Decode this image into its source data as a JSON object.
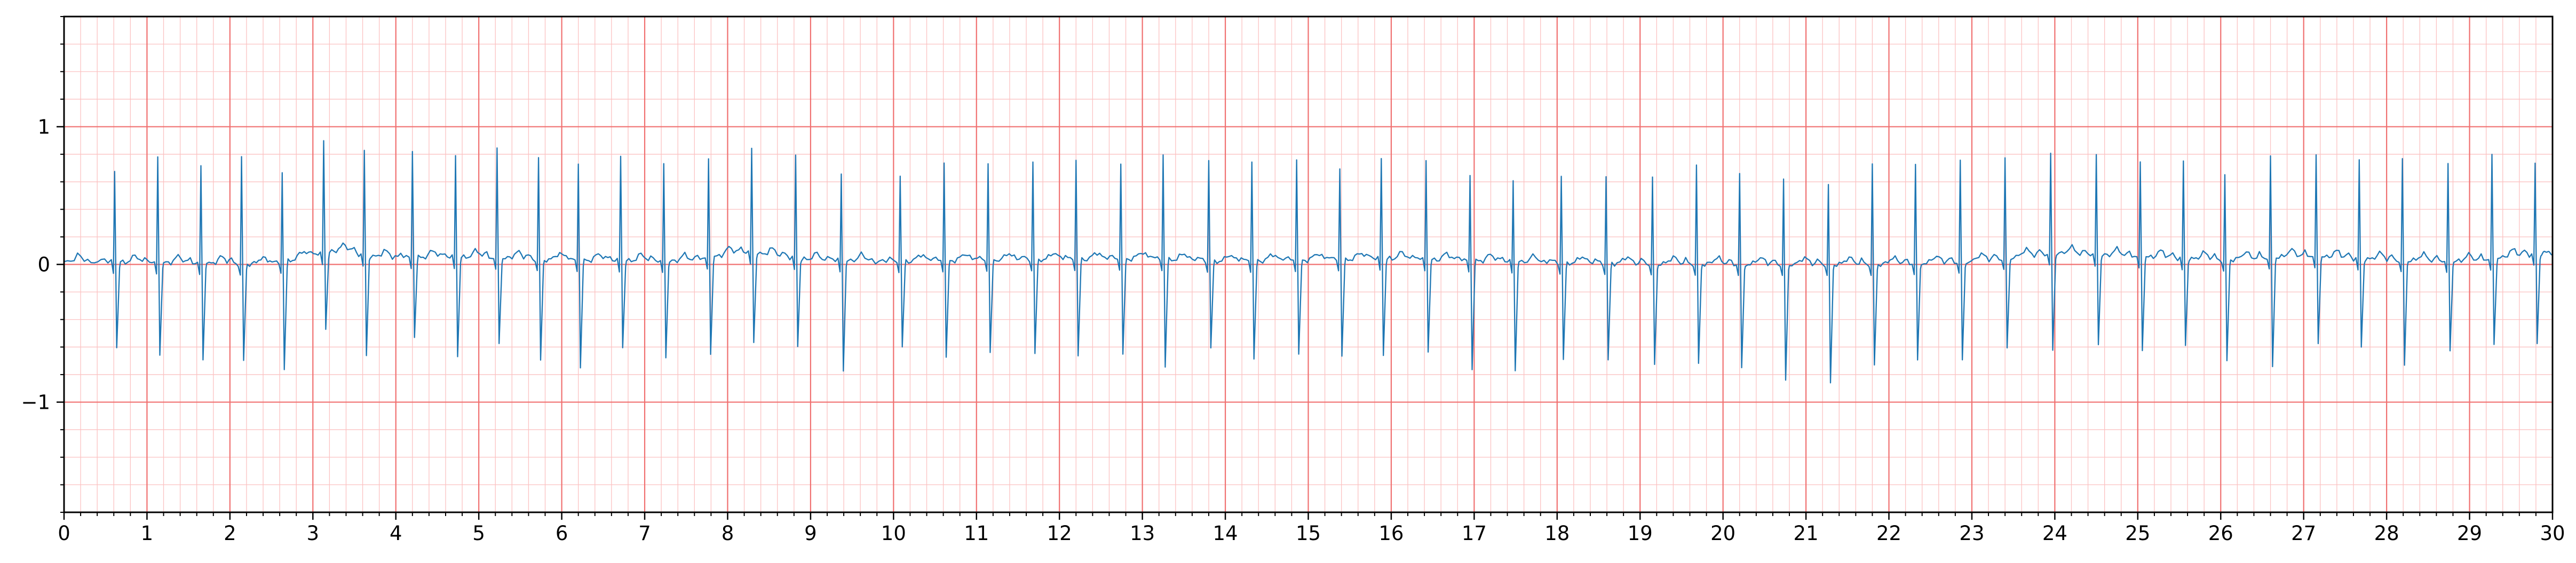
{
  "chart_data": {
    "type": "line",
    "title": "",
    "xlabel": "",
    "ylabel": "",
    "xlim": [
      0,
      30
    ],
    "ylim": [
      -1.8,
      1.8
    ],
    "grid": {
      "major_x_step": 1,
      "major_y_step": 1,
      "minor_step": 0.2,
      "major_color": "#f07070",
      "minor_color": "#fbc2c2"
    },
    "x_tick_labels": [
      "0",
      "1",
      "2",
      "3",
      "4",
      "5",
      "6",
      "7",
      "8",
      "9",
      "10",
      "11",
      "12",
      "13",
      "14",
      "15",
      "16",
      "17",
      "18",
      "19",
      "20",
      "21",
      "22",
      "23",
      "24",
      "25",
      "26",
      "27",
      "28",
      "29",
      "30"
    ],
    "y_ticks": [
      {
        "value": 1,
        "label": "1"
      },
      {
        "value": 0,
        "label": "0"
      },
      {
        "value": -1,
        "label": "−1"
      }
    ],
    "line_color": "#1f77b4",
    "series": [
      {
        "beat_times_s": [
          0.61,
          1.13,
          1.65,
          2.14,
          2.63,
          3.13,
          3.62,
          4.2,
          4.72,
          5.22,
          5.72,
          6.2,
          6.71,
          7.23,
          7.77,
          8.29,
          8.82,
          9.37,
          10.08,
          10.61,
          11.14,
          11.68,
          12.2,
          12.74,
          13.25,
          13.8,
          14.32,
          14.86,
          15.38,
          15.88,
          16.42,
          16.95,
          17.47,
          18.05,
          18.59,
          19.15,
          19.68,
          20.2,
          20.73,
          21.27,
          21.8,
          22.32,
          22.86,
          23.4,
          23.95,
          24.5,
          25.03,
          25.55,
          26.05,
          26.6,
          27.15,
          27.67,
          28.19,
          28.74,
          29.27,
          29.79
        ],
        "r_peak_amplitudes": [
          0.66,
          0.77,
          0.71,
          0.78,
          0.65,
          0.82,
          0.76,
          0.77,
          0.74,
          0.8,
          0.74,
          0.7,
          0.76,
          0.71,
          0.72,
          0.76,
          0.75,
          0.63,
          0.62,
          0.71,
          0.7,
          0.71,
          0.72,
          0.69,
          0.76,
          0.73,
          0.72,
          0.73,
          0.66,
          0.73,
          0.72,
          0.62,
          0.59,
          0.63,
          0.63,
          0.63,
          0.72,
          0.66,
          0.62,
          0.58,
          0.73,
          0.72,
          0.74,
          0.73,
          0.73,
          0.73,
          0.69,
          0.71,
          0.62,
          0.74,
          0.74,
          0.72,
          0.74,
          0.71,
          0.76,
          0.66
        ],
        "s_trough_amplitudes": [
          -0.62,
          -0.67,
          -0.7,
          -0.7,
          -0.78,
          -0.55,
          -0.73,
          -0.58,
          -0.72,
          -0.62,
          -0.73,
          -0.78,
          -0.63,
          -0.7,
          -0.7,
          -0.65,
          -0.64,
          -0.8,
          -0.62,
          -0.7,
          -0.67,
          -0.68,
          -0.7,
          -0.69,
          -0.78,
          -0.63,
          -0.71,
          -0.68,
          -0.7,
          -0.7,
          -0.67,
          -0.79,
          -0.79,
          -0.7,
          -0.7,
          -0.73,
          -0.72,
          -0.75,
          -0.84,
          -0.86,
          -0.73,
          -0.7,
          -0.71,
          -0.65,
          -0.7,
          -0.65,
          -0.68,
          -0.63,
          -0.73,
          -0.79,
          -0.63,
          -0.64,
          -0.76,
          -0.65,
          -0.62,
          -0.65
        ],
        "baseline_points": [
          [
            0,
            0.02
          ],
          [
            2.5,
            0.0
          ],
          [
            3.3,
            0.1
          ],
          [
            3.8,
            0.05
          ],
          [
            5,
            0.05
          ],
          [
            6,
            0.03
          ],
          [
            7.5,
            0.02
          ],
          [
            8.2,
            0.09
          ],
          [
            9,
            0.03
          ],
          [
            10,
            0.02
          ],
          [
            11,
            0.03
          ],
          [
            13,
            0.04
          ],
          [
            14,
            0.02
          ],
          [
            15,
            0.03
          ],
          [
            16,
            0.04
          ],
          [
            18,
            0.01
          ],
          [
            20,
            0.0
          ],
          [
            22,
            0.0
          ],
          [
            23,
            0.02
          ],
          [
            24,
            0.08
          ],
          [
            26,
            0.03
          ],
          [
            27,
            0.06
          ],
          [
            28,
            0.03
          ],
          [
            29,
            0.02
          ],
          [
            30,
            0.09
          ]
        ]
      }
    ]
  }
}
